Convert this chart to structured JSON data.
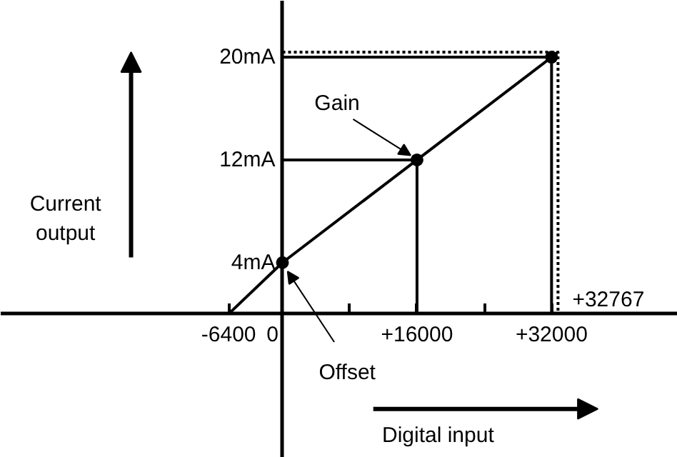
{
  "chart_data": {
    "type": "line",
    "xlabel": "Digital input",
    "ylabel": "Current output",
    "xlim": [
      -33500,
      47000
    ],
    "ylim": [
      -11.2,
      24.4
    ],
    "xticks": [
      {
        "value": -6400,
        "label": "-6400"
      },
      0,
      {
        "value": 8000,
        "label": null
      },
      {
        "value": 16000,
        "label": "+16000"
      },
      {
        "value": 24000,
        "label": null
      },
      {
        "value": 32000,
        "label": "+32000"
      }
    ],
    "yticks": [
      {
        "value": 4,
        "label": "4mA"
      },
      {
        "value": 12,
        "label": "12mA"
      },
      {
        "value": 20,
        "label": "20mA"
      }
    ],
    "grid": false,
    "series": [
      {
        "color": "#000000",
        "x": [
          -6400,
          0,
          16000,
          32000,
          32767
        ],
        "values": [
          0,
          4,
          12,
          20,
          20.4
        ]
      },
      {
        "color": "#000000",
        "x": [
          0,
          16000,
          16000
        ],
        "values": [
          12,
          12,
          0
        ]
      },
      {
        "color": "#000000",
        "x": [
          0,
          32000,
          32000
        ],
        "values": [
          20,
          20,
          0
        ]
      },
      {
        "color": "#000000",
        "line_style": "dotted",
        "x": [
          0,
          32767,
          32767
        ],
        "values": [
          20.4,
          20.4,
          0
        ]
      },
      {
        "type": "scatter",
        "color": "#000000",
        "marker": "circle",
        "x": [
          0,
          16000,
          32000
        ],
        "values": [
          4,
          12,
          20
        ]
      }
    ],
    "annotations": [
      {
        "text": "Offset",
        "x": 0,
        "y": 4
      },
      {
        "text": "Gain",
        "x": 16000,
        "y": 12
      },
      {
        "text": "+32767",
        "x": 32767,
        "y": 0
      }
    ]
  }
}
